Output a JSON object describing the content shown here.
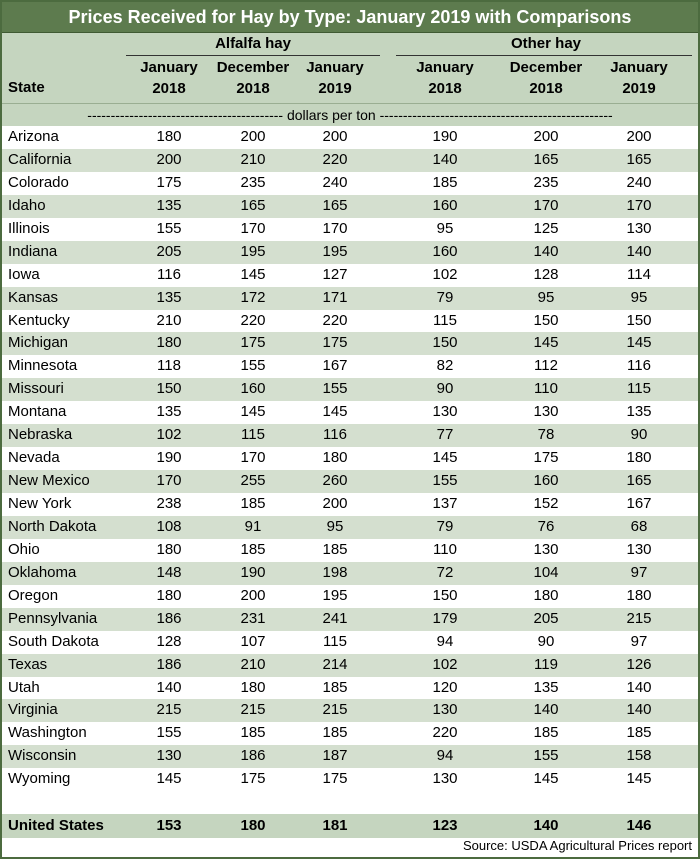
{
  "title": "Prices Received for Hay by Type: January 2019 with Comparisons",
  "groups": [
    "Alfalfa hay",
    "Other hay"
  ],
  "columns": [
    [
      "January",
      "2018"
    ],
    [
      "December",
      "2018"
    ],
    [
      "January",
      "2019"
    ],
    [
      "January",
      "2018"
    ],
    [
      "December",
      "2018"
    ],
    [
      "January",
      "2019"
    ]
  ],
  "state_label": "State",
  "units": "------------------------------------------ dollars per ton --------------------------------------------------",
  "rows": [
    [
      "Arizona",
      "180",
      "200",
      "200",
      "190",
      "200",
      "200"
    ],
    [
      "California",
      "200",
      "210",
      "220",
      "140",
      "165",
      "165"
    ],
    [
      "Colorado",
      "175",
      "235",
      "240",
      "185",
      "235",
      "240"
    ],
    [
      "Idaho",
      "135",
      "165",
      "165",
      "160",
      "170",
      "170"
    ],
    [
      "Illinois",
      "155",
      "170",
      "170",
      "95",
      "125",
      "130"
    ],
    [
      "Indiana",
      "205",
      "195",
      "195",
      "160",
      "140",
      "140"
    ],
    [
      "Iowa",
      "116",
      "145",
      "127",
      "102",
      "128",
      "114"
    ],
    [
      "Kansas",
      "135",
      "172",
      "171",
      "79",
      "95",
      "95"
    ],
    [
      "Kentucky",
      "210",
      "220",
      "220",
      "115",
      "150",
      "150"
    ],
    [
      "Michigan",
      "180",
      "175",
      "175",
      "150",
      "145",
      "145"
    ],
    [
      "Minnesota",
      "118",
      "155",
      "167",
      "82",
      "112",
      "116"
    ],
    [
      "Missouri",
      "150",
      "160",
      "155",
      "90",
      "110",
      "115"
    ],
    [
      "Montana",
      "135",
      "145",
      "145",
      "130",
      "130",
      "135"
    ],
    [
      "Nebraska",
      "102",
      "115",
      "116",
      "77",
      "78",
      "90"
    ],
    [
      "Nevada",
      "190",
      "170",
      "180",
      "145",
      "175",
      "180"
    ],
    [
      "New Mexico",
      "170",
      "255",
      "260",
      "155",
      "160",
      "165"
    ],
    [
      "New York",
      "238",
      "185",
      "200",
      "137",
      "152",
      "167"
    ],
    [
      "North Dakota",
      "108",
      "91",
      "95",
      "79",
      "76",
      "68"
    ],
    [
      "Ohio",
      "180",
      "185",
      "185",
      "110",
      "130",
      "130"
    ],
    [
      "Oklahoma",
      "148",
      "190",
      "198",
      "72",
      "104",
      "97"
    ],
    [
      "Oregon",
      "180",
      "200",
      "195",
      "150",
      "180",
      "180"
    ],
    [
      "Pennsylvania",
      "186",
      "231",
      "241",
      "179",
      "205",
      "215"
    ],
    [
      "South Dakota",
      "128",
      "107",
      "115",
      "94",
      "90",
      "97"
    ],
    [
      "Texas",
      "186",
      "210",
      "214",
      "102",
      "119",
      "126"
    ],
    [
      "Utah",
      "140",
      "180",
      "185",
      "120",
      "135",
      "140"
    ],
    [
      "Virginia",
      "215",
      "215",
      "215",
      "130",
      "140",
      "140"
    ],
    [
      "Washington",
      "155",
      "185",
      "185",
      "220",
      "185",
      "185"
    ],
    [
      "Wisconsin",
      "130",
      "186",
      "187",
      "94",
      "155",
      "158"
    ],
    [
      "Wyoming",
      "145",
      "175",
      "175",
      "130",
      "145",
      "145"
    ]
  ],
  "us_row": [
    "United States",
    "153",
    "180",
    "181",
    "123",
    "140",
    "146"
  ],
  "source": "Source: USDA Agricultural Prices report"
}
